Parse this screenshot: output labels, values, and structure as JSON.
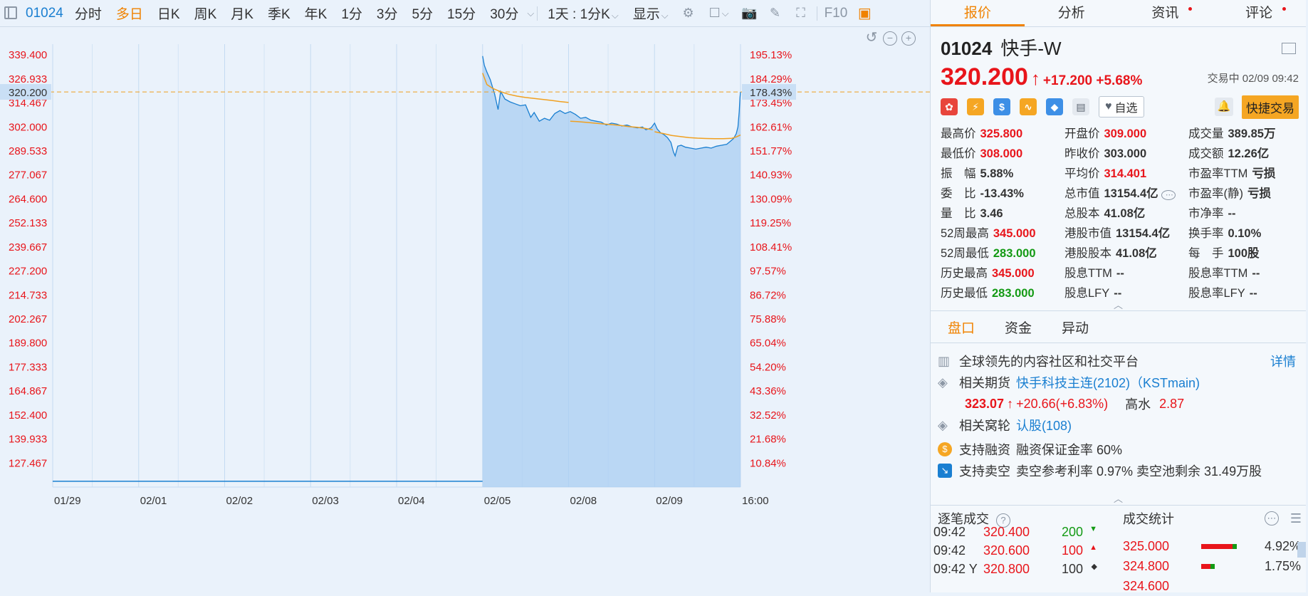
{
  "toolbar": {
    "code": "01024",
    "periods": [
      {
        "label": "分时",
        "active": false
      },
      {
        "label": "多日",
        "active": true
      },
      {
        "label": "日K",
        "active": false
      },
      {
        "label": "周K",
        "active": false
      },
      {
        "label": "月K",
        "active": false
      },
      {
        "label": "季K",
        "active": false
      },
      {
        "label": "年K",
        "active": false
      },
      {
        "label": "1分",
        "active": false
      },
      {
        "label": "3分",
        "active": false
      },
      {
        "label": "5分",
        "active": false
      },
      {
        "label": "15分",
        "active": false
      },
      {
        "label": "30分",
        "active": false
      }
    ],
    "interval_select": "1天 : 1分K",
    "display_select": "显示",
    "f10": "F10"
  },
  "chart_data": {
    "type": "line",
    "price_ticks": [
      "339.400",
      "326.933",
      "314.467",
      "302.000",
      "289.533",
      "277.067",
      "264.600",
      "252.133",
      "239.667",
      "227.200",
      "214.733",
      "202.267",
      "189.800",
      "177.333",
      "164.867",
      "152.400",
      "139.933",
      "127.467"
    ],
    "pct_ticks": [
      "195.13%",
      "184.29%",
      "173.45%",
      "162.61%",
      "151.77%",
      "140.93%",
      "130.09%",
      "119.25%",
      "108.41%",
      "97.57%",
      "86.72%",
      "75.88%",
      "65.04%",
      "54.20%",
      "43.36%",
      "32.52%",
      "21.68%",
      "10.84%"
    ],
    "dates": [
      "01/29",
      "02/01",
      "02/02",
      "02/03",
      "02/04",
      "02/05",
      "02/08",
      "02/09"
    ],
    "end_time": "16:00",
    "current_price_label": "320.200",
    "current_pct_label": "178.43%",
    "ylim": [
      115.0,
      345.0
    ],
    "price_series": [
      [
        0.0,
        338.8
      ],
      [
        0.02,
        334.0
      ],
      [
        0.05,
        330.5
      ],
      [
        0.09,
        326.5
      ],
      [
        0.14,
        319.0
      ],
      [
        0.18,
        311.0
      ],
      [
        0.21,
        320.5
      ],
      [
        0.26,
        316.5
      ],
      [
        0.32,
        315.0
      ],
      [
        0.38,
        314.0
      ],
      [
        0.44,
        313.0
      ],
      [
        0.5,
        313.5
      ],
      [
        0.56,
        307.0
      ],
      [
        0.6,
        309.5
      ],
      [
        0.66,
        305.0
      ],
      [
        0.72,
        306.5
      ],
      [
        0.78,
        305.5
      ],
      [
        0.84,
        309.0
      ],
      [
        0.9,
        310.5
      ],
      [
        0.96,
        309.0
      ],
      [
        1.02,
        310.0
      ],
      [
        1.08,
        308.5
      ],
      [
        1.14,
        306.5
      ],
      [
        1.2,
        307.0
      ],
      [
        1.26,
        305.5
      ],
      [
        1.32,
        305.0
      ],
      [
        1.38,
        304.5
      ],
      [
        1.44,
        303.0
      ],
      [
        1.5,
        304.0
      ],
      [
        1.56,
        303.5
      ],
      [
        1.62,
        302.5
      ],
      [
        1.68,
        303.0
      ],
      [
        1.74,
        302.0
      ],
      [
        1.8,
        301.5
      ],
      [
        1.86,
        302.0
      ],
      [
        1.9,
        300.5
      ],
      [
        1.96,
        301.5
      ],
      [
        2.0,
        304.0
      ],
      [
        2.03,
        301.0
      ],
      [
        2.07,
        299.0
      ],
      [
        2.11,
        298.0
      ],
      [
        2.15,
        296.5
      ],
      [
        2.19,
        294.0
      ],
      [
        2.22,
        289.0
      ],
      [
        2.24,
        287.0
      ],
      [
        2.27,
        292.0
      ],
      [
        2.31,
        292.5
      ],
      [
        2.36,
        291.5
      ],
      [
        2.42,
        291.0
      ],
      [
        2.48,
        290.5
      ],
      [
        2.54,
        291.0
      ],
      [
        2.6,
        291.5
      ],
      [
        2.66,
        291.0
      ],
      [
        2.72,
        292.0
      ],
      [
        2.78,
        292.5
      ],
      [
        2.84,
        293.0
      ],
      [
        2.88,
        294.5
      ],
      [
        2.92,
        296.0
      ],
      [
        2.95,
        298.5
      ],
      [
        2.97,
        302.0
      ],
      [
        2.985,
        310.0
      ],
      [
        2.993,
        317.0
      ],
      [
        3.0,
        320.2
      ]
    ],
    "avg_series": [
      [
        0.0,
        330.0
      ],
      [
        0.05,
        324.0
      ],
      [
        0.12,
        322.0
      ],
      [
        0.2,
        320.5
      ],
      [
        0.3,
        319.0
      ],
      [
        0.4,
        318.0
      ],
      [
        0.5,
        317.3
      ],
      [
        0.6,
        316.8
      ],
      [
        0.7,
        316.3
      ],
      [
        0.8,
        315.8
      ],
      [
        0.9,
        315.2
      ],
      [
        1.0,
        314.7
      ],
      [
        1.02,
        305.0
      ],
      [
        1.1,
        304.8
      ],
      [
        1.2,
        304.4
      ],
      [
        1.3,
        304.0
      ],
      [
        1.4,
        303.6
      ],
      [
        1.5,
        303.2
      ],
      [
        1.6,
        302.8
      ],
      [
        1.7,
        302.2
      ],
      [
        1.8,
        301.8
      ],
      [
        1.9,
        301.2
      ],
      [
        1.98,
        300.5
      ],
      [
        2.0,
        299.5
      ],
      [
        2.1,
        298.6
      ],
      [
        2.2,
        297.6
      ],
      [
        2.3,
        297.0
      ],
      [
        2.4,
        296.5
      ],
      [
        2.5,
        296.2
      ],
      [
        2.6,
        296.0
      ],
      [
        2.7,
        295.9
      ],
      [
        2.8,
        295.9
      ],
      [
        2.9,
        296.1
      ],
      [
        2.95,
        296.8
      ],
      [
        3.0,
        297.8
      ]
    ],
    "flat_value": 118.0
  },
  "panel": {
    "tabs": [
      {
        "label": "报价",
        "active": true,
        "dot": false
      },
      {
        "label": "分析",
        "active": false,
        "dot": false
      },
      {
        "label": "资讯",
        "active": false,
        "dot": true
      },
      {
        "label": "评论",
        "active": false,
        "dot": true
      }
    ],
    "code": "01024",
    "name": "快手-W",
    "price": "320.200",
    "change": "+17.200 +5.68%",
    "status": "交易中 02/09 09:42",
    "watch_label": "自选",
    "quick_trade": "快捷交易",
    "stats": [
      {
        "label": "最高价",
        "value": "325.800",
        "color": "red"
      },
      {
        "label": "开盘价",
        "value": "309.000",
        "color": "red"
      },
      {
        "label": "成交量",
        "value": "389.85万",
        "color": ""
      },
      {
        "label": "最低价",
        "value": "308.000",
        "color": "red"
      },
      {
        "label": "昨收价",
        "value": "303.000",
        "color": ""
      },
      {
        "label": "成交额",
        "value": "12.26亿",
        "color": ""
      },
      {
        "label": "振　幅",
        "value": "5.88%",
        "color": ""
      },
      {
        "label": "平均价",
        "value": "314.401",
        "color": "red"
      },
      {
        "label": "市盈率TTM",
        "value": "亏损",
        "color": ""
      },
      {
        "label": "委　比",
        "value": "-13.43%",
        "color": ""
      },
      {
        "label": "总市值",
        "value": "13154.4亿",
        "color": ""
      },
      {
        "label": "市盈率(静)",
        "value": "亏损",
        "color": ""
      },
      {
        "label": "量　比",
        "value": "3.46",
        "color": ""
      },
      {
        "label": "总股本",
        "value": "41.08亿",
        "color": ""
      },
      {
        "label": "市净率",
        "value": "--",
        "color": ""
      },
      {
        "label": "52周最高",
        "value": "345.000",
        "color": "red"
      },
      {
        "label": "港股市值",
        "value": "13154.4亿",
        "color": ""
      },
      {
        "label": "换手率",
        "value": "0.10%",
        "color": ""
      },
      {
        "label": "52周最低",
        "value": "283.000",
        "color": "green"
      },
      {
        "label": "港股股本",
        "value": "41.08亿",
        "color": ""
      },
      {
        "label": "每　手",
        "value": "100股",
        "color": ""
      },
      {
        "label": "历史最高",
        "value": "345.000",
        "color": "red"
      },
      {
        "label": "股息TTM",
        "value": "--",
        "color": ""
      },
      {
        "label": "股息率TTM",
        "value": "--",
        "color": ""
      },
      {
        "label": "历史最低",
        "value": "283.000",
        "color": "green"
      },
      {
        "label": "股息LFY",
        "value": "--",
        "color": ""
      },
      {
        "label": "股息率LFY",
        "value": "--",
        "color": ""
      }
    ],
    "sub_tabs": [
      {
        "label": "盘口",
        "active": true
      },
      {
        "label": "资金",
        "active": false
      },
      {
        "label": "异动",
        "active": false
      }
    ],
    "info": {
      "desc": "全球领先的内容社区和社交平台",
      "detail_link": "详情",
      "futures_label": "相关期货",
      "futures_link": "快手科技主连(2102)（KSTmain)",
      "futures_price": "323.07",
      "futures_change": "+20.66(+6.83%)",
      "futures_premium_label": "高水",
      "futures_premium": "2.87",
      "warrant_label": "相关窝轮",
      "warrant_link": "认股(108)",
      "margin_label": "支持融资",
      "margin_text": "融资保证金率 60%",
      "short_label": "支持卖空",
      "short_text": "卖空参考利率 0.97% 卖空池剩余 31.49万股"
    },
    "ticks_title": "逐笔成交",
    "stats_title": "成交统计",
    "ticks": [
      {
        "time": "09:42",
        "price": "320.400",
        "vol": "200",
        "dir": "down"
      },
      {
        "time": "09:42",
        "price": "320.600",
        "vol": "100",
        "dir": "up"
      },
      {
        "time": "09:42 Y",
        "price": "320.800",
        "vol": "100",
        "dir": "neutral"
      }
    ],
    "vol_stats": [
      {
        "price": "325.000",
        "pct": "4.92%",
        "bar": 0.85
      },
      {
        "price": "324.800",
        "pct": "1.75%",
        "bar": 0.25
      },
      {
        "price": "324.600",
        "pct": "",
        "bar": 0.0
      }
    ],
    "colors": {
      "red": "#e8151b",
      "green": "#139a14",
      "orange": "#f08200",
      "blue": "#1a7fd1"
    }
  }
}
